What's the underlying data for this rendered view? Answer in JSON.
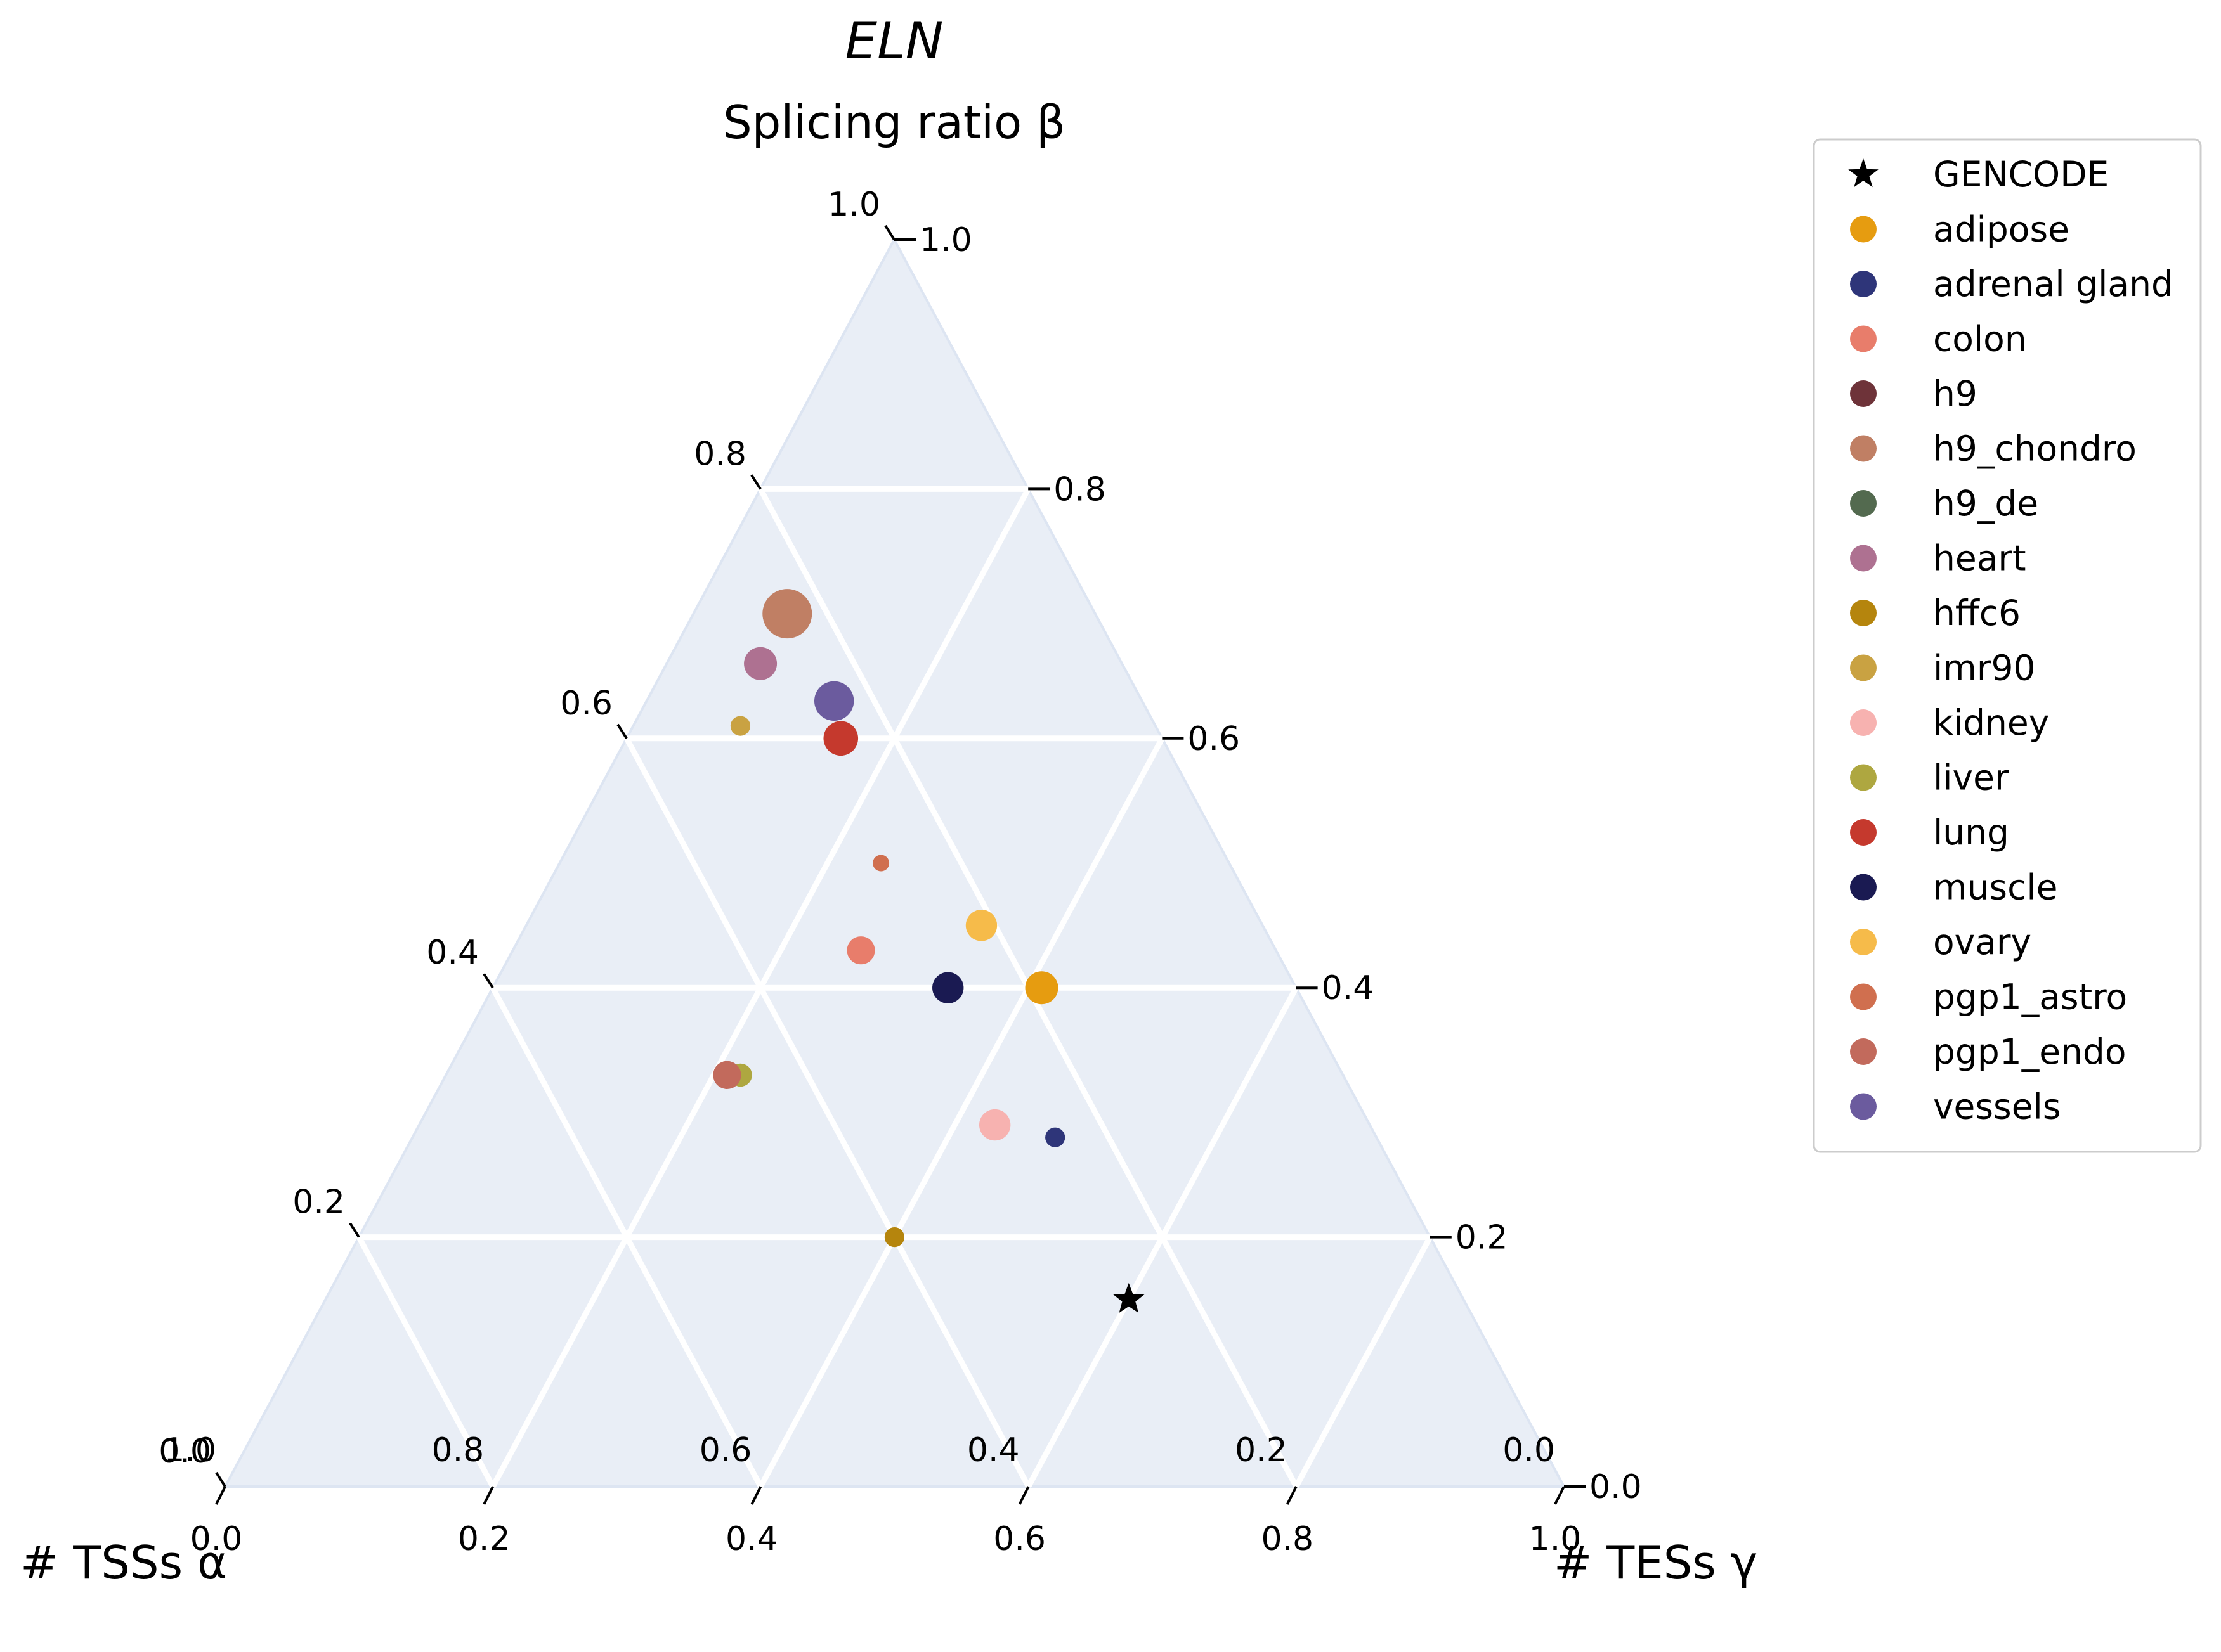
{
  "chart_data": {
    "type": "scatter",
    "subtype": "ternary",
    "title": "ELN",
    "axes": {
      "top": {
        "label": "Splicing ratio β",
        "ticks": [
          "0.0",
          "0.2",
          "0.4",
          "0.6",
          "0.8",
          "1.0"
        ]
      },
      "left": {
        "label": "# TSSs α",
        "ticks": [
          "0.0",
          "0.2",
          "0.4",
          "0.6",
          "0.8",
          "1.0"
        ]
      },
      "right": {
        "label": "# TESs γ",
        "ticks": [
          "0.0",
          "0.2",
          "0.4",
          "0.6",
          "0.8",
          "1.0"
        ]
      }
    },
    "grid": true,
    "legend_position": "top-right",
    "series": [
      {
        "name": "GENCODE",
        "color": "#000000",
        "marker": "star",
        "size": 1,
        "alpha": 0.25,
        "beta": 0.15,
        "gamma": 0.6
      },
      {
        "name": "adipose",
        "color": "#e69c10",
        "marker": "circle",
        "size": 1.0,
        "alpha": 0.19,
        "beta": 0.4,
        "gamma": 0.41
      },
      {
        "name": "adrenal gland",
        "color": "#2e3579",
        "marker": "circle",
        "size": 0.6,
        "alpha": 0.24,
        "beta": 0.28,
        "gamma": 0.48
      },
      {
        "name": "colon",
        "color": "#e87d6b",
        "marker": "circle",
        "size": 0.85,
        "alpha": 0.31,
        "beta": 0.43,
        "gamma": 0.26
      },
      {
        "name": "h9",
        "color": "#6e3339",
        "marker": "circle",
        "size": 0,
        "alpha": null,
        "beta": null,
        "gamma": null
      },
      {
        "name": "h9_chondro",
        "color": "#c07f64",
        "marker": "circle",
        "size": 1.5,
        "alpha": 0.23,
        "beta": 0.7,
        "gamma": 0.07
      },
      {
        "name": "h9_de",
        "color": "#536a4f",
        "marker": "circle",
        "size": 0,
        "alpha": null,
        "beta": null,
        "gamma": null
      },
      {
        "name": "heart",
        "color": "#ae7191",
        "marker": "circle",
        "size": 1.0,
        "alpha": 0.27,
        "beta": 0.66,
        "gamma": 0.07
      },
      {
        "name": "hffc6",
        "color": "#b5850d",
        "marker": "circle",
        "size": 0.6,
        "alpha": 0.4,
        "beta": 0.2,
        "gamma": 0.4
      },
      {
        "name": "imr90",
        "color": "#c9a242",
        "marker": "circle",
        "size": 0.6,
        "alpha": 0.31,
        "beta": 0.61,
        "gamma": 0.08
      },
      {
        "name": "kidney",
        "color": "#f7b2b0",
        "marker": "circle",
        "size": 0.95,
        "alpha": 0.28,
        "beta": 0.29,
        "gamma": 0.43
      },
      {
        "name": "liver",
        "color": "#aea740",
        "marker": "circle",
        "size": 0.7,
        "alpha": 0.45,
        "beta": 0.33,
        "gamma": 0.22
      },
      {
        "name": "lung",
        "color": "#c5392d",
        "marker": "circle",
        "size": 1.05,
        "alpha": 0.24,
        "beta": 0.6,
        "gamma": 0.16
      },
      {
        "name": "muscle",
        "color": "#1a1a52",
        "marker": "circle",
        "size": 0.95,
        "alpha": 0.26,
        "beta": 0.4,
        "gamma": 0.34
      },
      {
        "name": "ovary",
        "color": "#f6bb4a",
        "marker": "circle",
        "size": 0.95,
        "alpha": 0.21,
        "beta": 0.45,
        "gamma": 0.34
      },
      {
        "name": "pgp1_astro",
        "color": "#d06f4f",
        "marker": "circle",
        "size": 0.5,
        "alpha": 0.26,
        "beta": 0.5,
        "gamma": 0.24
      },
      {
        "name": "pgp1_endo",
        "color": "#c26a5c",
        "marker": "circle",
        "size": 0.85,
        "alpha": 0.46,
        "beta": 0.33,
        "gamma": 0.21
      },
      {
        "name": "vessels",
        "color": "#6b5b9e",
        "marker": "circle",
        "size": 1.2,
        "alpha": 0.23,
        "beta": 0.63,
        "gamma": 0.14
      }
    ]
  },
  "colors": {
    "plot_background": "#e9eef6",
    "grid": "#ffffff"
  }
}
